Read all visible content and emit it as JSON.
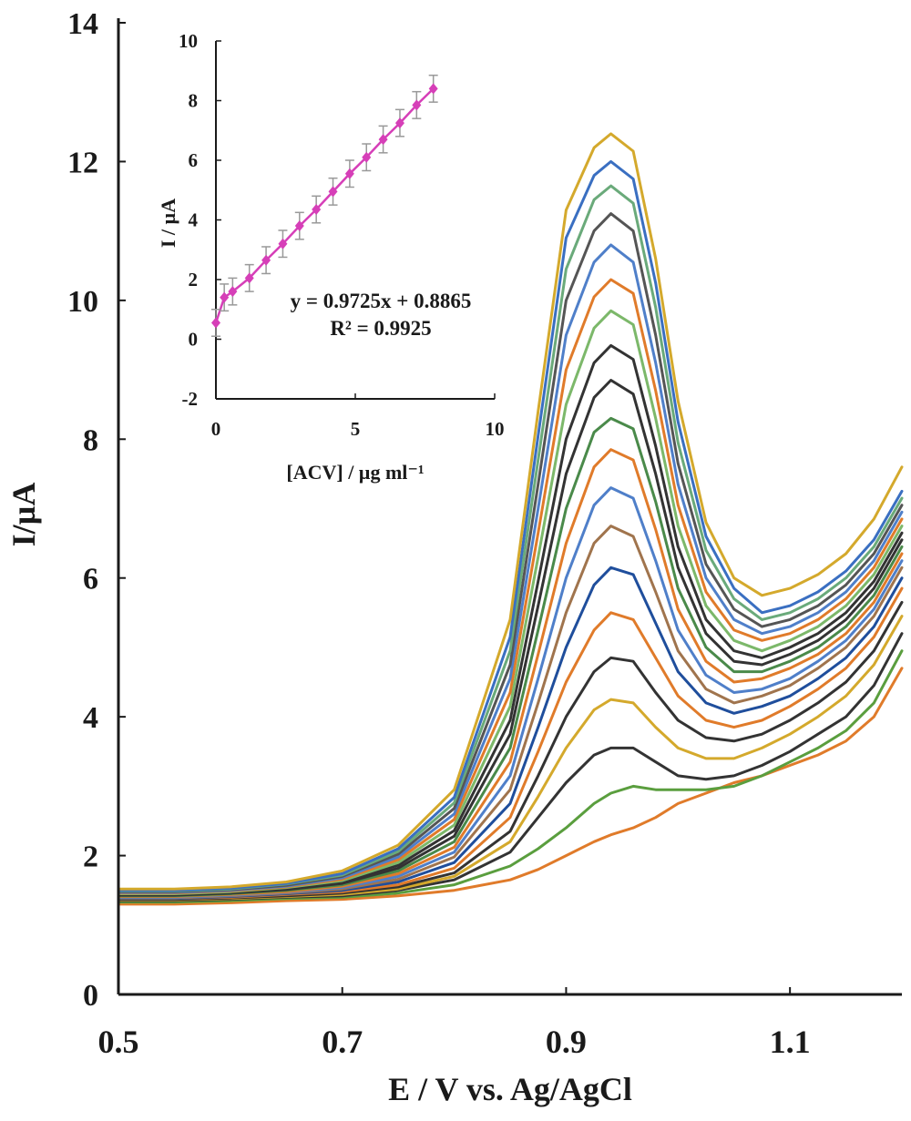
{
  "chart_data": [
    {
      "type": "line",
      "title": "",
      "xlabel": "E / V vs. Ag/AgCl",
      "ylabel": "I/µA",
      "xlim": [
        0.5,
        1.2
      ],
      "ylim": [
        0,
        14
      ],
      "x_ticks": [
        "0.5",
        "0.7",
        "0.9",
        "1.1"
      ],
      "y_ticks": [
        "0",
        "2",
        "4",
        "6",
        "8",
        "10",
        "12",
        "14"
      ],
      "grid": false,
      "legend": "none",
      "x": [
        0.5,
        0.55,
        0.6,
        0.65,
        0.7,
        0.75,
        0.8,
        0.85,
        0.875,
        0.9,
        0.925,
        0.94,
        0.96,
        0.98,
        1.0,
        1.025,
        1.05,
        1.075,
        1.1,
        1.125,
        1.15,
        1.175,
        1.2
      ],
      "series": [
        {
          "color": "#e07b2a",
          "values": [
            1.3,
            1.3,
            1.32,
            1.35,
            1.37,
            1.42,
            1.5,
            1.65,
            1.8,
            2.0,
            2.2,
            2.3,
            2.4,
            2.55,
            2.75,
            2.9,
            3.05,
            3.15,
            3.3,
            3.45,
            3.65,
            4.0,
            4.7
          ]
        },
        {
          "color": "#5a9e3e",
          "values": [
            1.33,
            1.33,
            1.35,
            1.38,
            1.4,
            1.46,
            1.58,
            1.85,
            2.1,
            2.4,
            2.75,
            2.9,
            3.0,
            2.95,
            2.95,
            2.95,
            3.0,
            3.15,
            3.35,
            3.55,
            3.8,
            4.2,
            4.95
          ]
        },
        {
          "color": "#333333",
          "values": [
            1.35,
            1.35,
            1.37,
            1.4,
            1.42,
            1.5,
            1.65,
            2.05,
            2.55,
            3.05,
            3.45,
            3.55,
            3.55,
            3.35,
            3.15,
            3.1,
            3.15,
            3.3,
            3.5,
            3.75,
            4.0,
            4.45,
            5.2
          ]
        },
        {
          "color": "#d4a92c",
          "values": [
            1.36,
            1.36,
            1.38,
            1.41,
            1.44,
            1.52,
            1.7,
            2.2,
            2.85,
            3.55,
            4.1,
            4.25,
            4.2,
            3.85,
            3.55,
            3.4,
            3.4,
            3.55,
            3.75,
            4.0,
            4.3,
            4.75,
            5.45
          ]
        },
        {
          "color": "#333333",
          "values": [
            1.37,
            1.37,
            1.39,
            1.42,
            1.46,
            1.55,
            1.75,
            2.35,
            3.15,
            4.0,
            4.65,
            4.85,
            4.8,
            4.35,
            3.95,
            3.7,
            3.65,
            3.75,
            3.95,
            4.2,
            4.5,
            4.95,
            5.65
          ]
        },
        {
          "color": "#e07b2a",
          "values": [
            1.38,
            1.38,
            1.4,
            1.44,
            1.48,
            1.58,
            1.82,
            2.55,
            3.5,
            4.5,
            5.25,
            5.5,
            5.4,
            4.85,
            4.3,
            3.95,
            3.85,
            3.95,
            4.15,
            4.4,
            4.7,
            5.15,
            5.85
          ]
        },
        {
          "color": "#1f4e9c",
          "values": [
            1.38,
            1.38,
            1.41,
            1.45,
            1.5,
            1.62,
            1.9,
            2.75,
            3.85,
            5.0,
            5.9,
            6.15,
            6.05,
            5.35,
            4.65,
            4.2,
            4.05,
            4.15,
            4.3,
            4.55,
            4.85,
            5.3,
            6.0
          ]
        },
        {
          "color": "#a0744d",
          "values": [
            1.39,
            1.39,
            1.42,
            1.46,
            1.52,
            1.66,
            1.98,
            2.95,
            4.2,
            5.5,
            6.5,
            6.75,
            6.6,
            5.8,
            4.95,
            4.4,
            4.2,
            4.3,
            4.45,
            4.7,
            5.0,
            5.45,
            6.15
          ]
        },
        {
          "color": "#4f7fc9",
          "values": [
            1.4,
            1.4,
            1.43,
            1.47,
            1.54,
            1.7,
            2.05,
            3.15,
            4.55,
            6.0,
            7.05,
            7.3,
            7.15,
            6.25,
            5.25,
            4.6,
            4.35,
            4.4,
            4.55,
            4.8,
            5.1,
            5.55,
            6.25
          ]
        },
        {
          "color": "#e07b2a",
          "values": [
            1.41,
            1.41,
            1.44,
            1.48,
            1.56,
            1.74,
            2.12,
            3.35,
            4.9,
            6.5,
            7.6,
            7.85,
            7.7,
            6.7,
            5.55,
            4.8,
            4.5,
            4.55,
            4.7,
            4.9,
            5.2,
            5.65,
            6.35
          ]
        },
        {
          "color": "#4a8a4a",
          "values": [
            1.42,
            1.42,
            1.45,
            1.5,
            1.58,
            1.78,
            2.2,
            3.55,
            5.25,
            7.0,
            8.1,
            8.3,
            8.15,
            7.1,
            5.85,
            5.0,
            4.65,
            4.65,
            4.8,
            5.0,
            5.3,
            5.75,
            6.45
          ]
        },
        {
          "color": "#333333",
          "values": [
            1.43,
            1.43,
            1.46,
            1.51,
            1.6,
            1.82,
            2.28,
            3.75,
            5.6,
            7.5,
            8.6,
            8.85,
            8.65,
            7.5,
            6.15,
            5.2,
            4.8,
            4.75,
            4.9,
            5.1,
            5.4,
            5.85,
            6.55
          ]
        },
        {
          "color": "#333333",
          "values": [
            1.44,
            1.44,
            1.47,
            1.52,
            1.62,
            1.86,
            2.36,
            3.95,
            5.95,
            8.0,
            9.1,
            9.35,
            9.15,
            7.9,
            6.45,
            5.4,
            4.95,
            4.85,
            5.0,
            5.2,
            5.5,
            5.95,
            6.65
          ]
        },
        {
          "color": "#7cb86a",
          "values": [
            1.45,
            1.45,
            1.48,
            1.54,
            1.64,
            1.9,
            2.44,
            4.15,
            6.3,
            8.5,
            9.6,
            9.85,
            9.65,
            8.3,
            6.75,
            5.6,
            5.1,
            4.95,
            5.1,
            5.3,
            5.6,
            6.05,
            6.75
          ]
        },
        {
          "color": "#e07b2a",
          "values": [
            1.46,
            1.46,
            1.49,
            1.55,
            1.66,
            1.94,
            2.52,
            4.35,
            6.65,
            9.0,
            10.05,
            10.3,
            10.1,
            8.7,
            7.05,
            5.8,
            5.25,
            5.1,
            5.2,
            5.4,
            5.7,
            6.15,
            6.85
          ]
        },
        {
          "color": "#4f7fc9",
          "values": [
            1.47,
            1.47,
            1.5,
            1.56,
            1.68,
            1.98,
            2.6,
            4.55,
            7.0,
            9.5,
            10.55,
            10.8,
            10.55,
            9.1,
            7.35,
            6.0,
            5.4,
            5.2,
            5.3,
            5.5,
            5.8,
            6.25,
            6.95
          ]
        },
        {
          "color": "#555555",
          "values": [
            1.48,
            1.48,
            1.51,
            1.57,
            1.7,
            2.02,
            2.68,
            4.75,
            7.35,
            10.0,
            11.0,
            11.25,
            11.0,
            9.5,
            7.65,
            6.2,
            5.55,
            5.3,
            5.4,
            5.6,
            5.9,
            6.35,
            7.05
          ]
        },
        {
          "color": "#6aaa7a",
          "values": [
            1.49,
            1.49,
            1.52,
            1.59,
            1.72,
            2.06,
            2.76,
            4.95,
            7.7,
            10.45,
            11.45,
            11.65,
            11.4,
            9.9,
            7.95,
            6.4,
            5.7,
            5.4,
            5.5,
            5.7,
            6.0,
            6.45,
            7.15
          ]
        },
        {
          "color": "#3a6fc1",
          "values": [
            1.5,
            1.5,
            1.53,
            1.6,
            1.74,
            2.1,
            2.84,
            5.15,
            8.05,
            10.9,
            11.8,
            12.0,
            11.75,
            10.25,
            8.25,
            6.6,
            5.85,
            5.5,
            5.6,
            5.8,
            6.1,
            6.55,
            7.25
          ]
        },
        {
          "color": "#d4a92c",
          "values": [
            1.52,
            1.52,
            1.55,
            1.62,
            1.78,
            2.15,
            2.95,
            5.4,
            8.4,
            11.3,
            12.2,
            12.4,
            12.15,
            10.6,
            8.55,
            6.8,
            6.0,
            5.75,
            5.85,
            6.05,
            6.35,
            6.85,
            7.6
          ]
        }
      ]
    },
    {
      "type": "scatter",
      "title": "",
      "xlabel": "[ACV] / µg ml⁻¹",
      "ylabel": "I / µA",
      "xlim": [
        0,
        10
      ],
      "ylim": [
        -2,
        10
      ],
      "x_ticks": [
        "0",
        "5",
        "10"
      ],
      "y_ticks": [
        "-2",
        "0",
        "2",
        "4",
        "6",
        "8",
        "10"
      ],
      "marker_color": "#d63fb8",
      "error_bar_color": "#999999",
      "x": [
        0.0,
        0.3,
        0.6,
        1.2,
        1.8,
        2.4,
        3.0,
        3.6,
        4.2,
        4.8,
        5.4,
        6.0,
        6.6,
        7.2,
        7.8
      ],
      "values": [
        0.55,
        1.4,
        1.6,
        2.05,
        2.65,
        3.2,
        3.8,
        4.35,
        4.95,
        5.55,
        6.1,
        6.7,
        7.25,
        7.85,
        8.4
      ],
      "error": [
        0.45,
        0.45,
        0.45,
        0.45,
        0.45,
        0.45,
        0.45,
        0.45,
        0.45,
        0.45,
        0.45,
        0.45,
        0.45,
        0.45,
        0.45
      ],
      "trendline": {
        "slope": 0.9725,
        "intercept": 0.8865
      },
      "equation": "y = 0.9725x + 0.8865",
      "r_squared": "R² = 0.9925"
    }
  ]
}
